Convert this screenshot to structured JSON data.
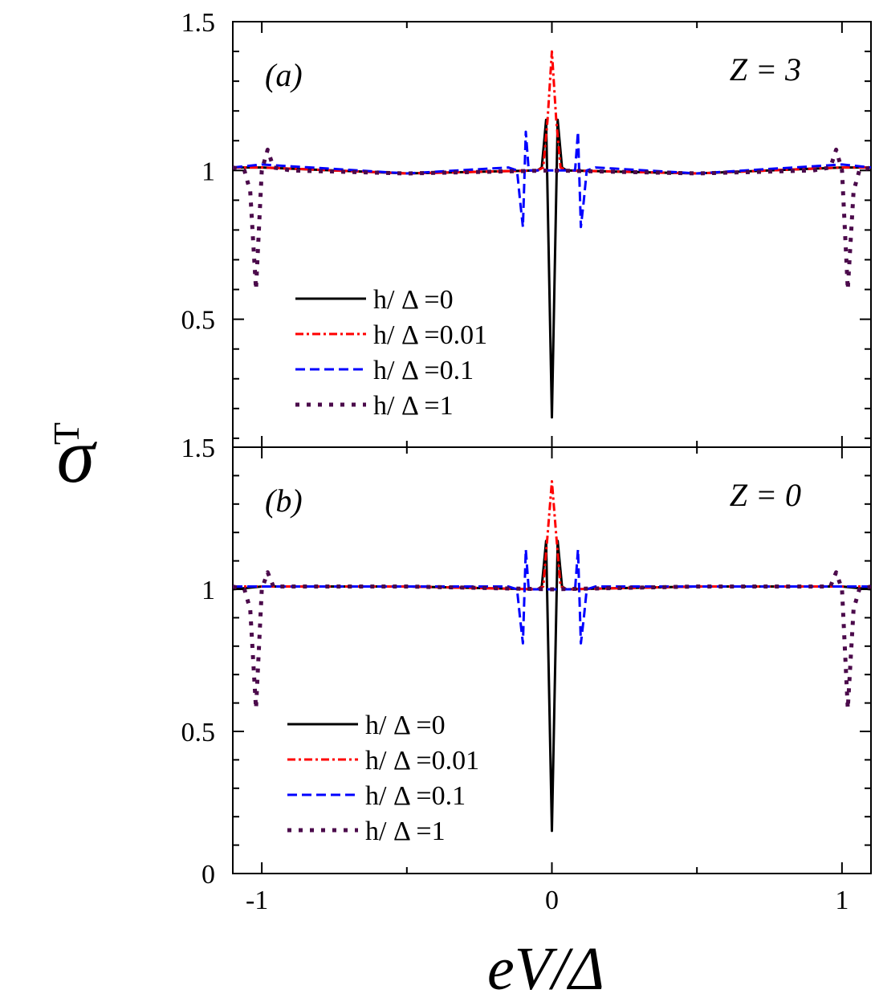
{
  "figure": {
    "ylabel": "σ",
    "ylabel_sub": "T",
    "xlabel": "eV/Δ"
  },
  "colors": {
    "h0": "#000000",
    "h001": "#ff0000",
    "h01": "#0000ff",
    "h1": "#4b0a4b"
  },
  "chart_data": [
    {
      "type": "line",
      "panel_label": "(a)",
      "annotation": "Z = 3",
      "xlim": [
        -1.1,
        1.1
      ],
      "ylim": [
        0.07,
        1.5
      ],
      "xticks": [
        -1,
        0,
        1
      ],
      "xtick_labels": [
        "",
        "",
        ""
      ],
      "yticks": [
        0.5,
        1,
        1.5
      ],
      "ytick_labels": [
        "0.5",
        "1",
        "1.5"
      ],
      "legend": [
        "h/ Δ =0",
        "h/ Δ =0.01",
        "h/ Δ =0.1",
        "h/ Δ =1"
      ],
      "legend_position": "lower-left",
      "series": [
        {
          "name": "h/ Δ =0",
          "style": "solid",
          "color": "#000000",
          "x": [
            -1.1,
            -1.0,
            -0.5,
            -0.05,
            -0.035,
            -0.02,
            0.0,
            0.02,
            0.035,
            0.05,
            0.5,
            1.0,
            1.1
          ],
          "y": [
            1.01,
            1.01,
            0.99,
            1.0,
            1.01,
            1.17,
            0.17,
            1.17,
            1.01,
            1.0,
            0.99,
            1.01,
            1.01
          ]
        },
        {
          "name": "h/ Δ =0.01",
          "style": "dashdot",
          "color": "#ff0000",
          "x": [
            -1.1,
            -1.0,
            -0.5,
            -0.05,
            -0.03,
            -0.015,
            0.0,
            0.015,
            0.03,
            0.05,
            0.5,
            1.0,
            1.1
          ],
          "y": [
            1.01,
            1.01,
            0.99,
            1.0,
            1.01,
            1.17,
            1.4,
            1.17,
            1.01,
            1.0,
            0.99,
            1.01,
            1.01
          ]
        },
        {
          "name": "h/ Δ =0.1",
          "style": "dashed",
          "color": "#0000ff",
          "x": [
            -1.1,
            -1.0,
            -0.5,
            -0.15,
            -0.12,
            -0.11,
            -0.1,
            -0.09,
            -0.08,
            -0.06,
            0.0,
            0.06,
            0.08,
            0.09,
            0.1,
            0.11,
            0.12,
            0.15,
            0.5,
            1.0,
            1.1
          ],
          "y": [
            1.01,
            1.02,
            0.99,
            1.01,
            1.0,
            0.9,
            0.81,
            1.13,
            1.0,
            1.0,
            1.0,
            1.0,
            1.0,
            1.13,
            0.81,
            0.9,
            1.0,
            1.01,
            0.99,
            1.02,
            1.01
          ]
        },
        {
          "name": "h/ Δ =1",
          "style": "dotted",
          "color": "#4b0a4b",
          "x": [
            -1.1,
            -1.06,
            -1.04,
            -1.02,
            -1.0,
            -0.98,
            -0.96,
            -0.9,
            -0.5,
            0.0,
            0.5,
            0.9,
            0.96,
            0.98,
            1.0,
            1.02,
            1.04,
            1.06,
            1.1
          ],
          "y": [
            1.01,
            1.0,
            0.93,
            0.6,
            1.0,
            1.07,
            1.01,
            1.0,
            0.99,
            1.0,
            0.99,
            1.0,
            1.01,
            1.07,
            1.0,
            0.6,
            0.93,
            1.0,
            1.01
          ]
        }
      ]
    },
    {
      "type": "line",
      "panel_label": "(b)",
      "annotation": "Z = 0",
      "xlim": [
        -1.1,
        1.1
      ],
      "ylim": [
        0,
        1.5
      ],
      "xticks": [
        -1,
        0,
        1
      ],
      "xtick_labels": [
        "-1",
        "0",
        "1"
      ],
      "yticks": [
        0,
        0.5,
        1,
        1.5
      ],
      "ytick_labels": [
        "0",
        "0.5",
        "1",
        "1.5"
      ],
      "legend": [
        "h/ Δ =0",
        "h/ Δ =0.01",
        "h/ Δ =0.1",
        "h/ Δ =1"
      ],
      "legend_position": "lower-left",
      "series": [
        {
          "name": "h/ Δ =0",
          "style": "solid",
          "color": "#000000",
          "x": [
            -1.1,
            -1.0,
            -0.5,
            -0.05,
            -0.035,
            -0.02,
            0.0,
            0.02,
            0.035,
            0.05,
            0.5,
            1.0,
            1.1
          ],
          "y": [
            1.0,
            1.01,
            1.01,
            1.0,
            1.01,
            1.17,
            0.15,
            1.17,
            1.01,
            1.0,
            1.01,
            1.01,
            1.0
          ]
        },
        {
          "name": "h/ Δ =0.01",
          "style": "dashdot",
          "color": "#ff0000",
          "x": [
            -1.1,
            -1.0,
            -0.5,
            -0.05,
            -0.03,
            -0.015,
            0.0,
            0.015,
            0.03,
            0.05,
            0.5,
            1.0,
            1.1
          ],
          "y": [
            1.01,
            1.01,
            1.01,
            1.0,
            1.01,
            1.19,
            1.38,
            1.19,
            1.01,
            1.0,
            1.01,
            1.01,
            1.01
          ]
        },
        {
          "name": "h/ Δ =0.1",
          "style": "dashed",
          "color": "#0000ff",
          "x": [
            -1.1,
            -1.0,
            -0.5,
            -0.15,
            -0.12,
            -0.11,
            -0.1,
            -0.09,
            -0.08,
            -0.06,
            0.0,
            0.06,
            0.08,
            0.09,
            0.1,
            0.11,
            0.12,
            0.15,
            0.5,
            1.0,
            1.1
          ],
          "y": [
            1.01,
            1.01,
            1.01,
            1.01,
            1.0,
            0.9,
            0.81,
            1.14,
            1.0,
            1.0,
            1.0,
            1.0,
            1.0,
            1.14,
            0.81,
            0.9,
            1.0,
            1.01,
            1.01,
            1.01,
            1.01
          ]
        },
        {
          "name": "h/ Δ =1",
          "style": "dotted",
          "color": "#4b0a4b",
          "x": [
            -1.1,
            -1.06,
            -1.04,
            -1.02,
            -1.0,
            -0.98,
            -0.96,
            -0.9,
            -0.5,
            0.0,
            0.5,
            0.9,
            0.96,
            0.98,
            1.0,
            1.02,
            1.04,
            1.06,
            1.1
          ],
          "y": [
            1.01,
            1.0,
            0.93,
            0.58,
            1.0,
            1.06,
            1.01,
            1.01,
            1.01,
            1.0,
            1.01,
            1.01,
            1.01,
            1.06,
            1.0,
            0.58,
            0.93,
            1.0,
            1.01
          ]
        }
      ]
    }
  ]
}
